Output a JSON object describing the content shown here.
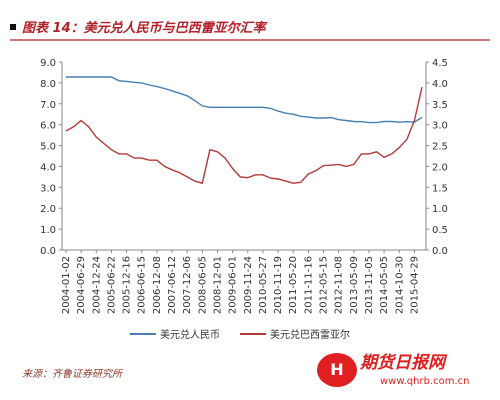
{
  "chart_data": {
    "type": "line",
    "title": "图表 14：美元兑人民币与巴西雷亚尔汇率",
    "source": "来源：齐鲁证券研究所",
    "watermark": {
      "name": "期货日报网",
      "url": "www.qhrb.com.cn"
    },
    "categories": [
      "2004-01-02",
      null,
      "2004-06-29",
      null,
      "2004-12-24",
      null,
      "2005-06-22",
      null,
      "2005-12-16",
      null,
      "2006-06-15",
      null,
      "2006-12-08",
      null,
      "2007-06-12",
      null,
      "2007-12-06",
      null,
      "2008-06-05",
      null,
      "2008-12-01",
      null,
      "2009-06-01",
      null,
      "2009-11-24",
      null,
      "2010-05-27",
      null,
      "2010-11-19",
      null,
      "2011-05-20",
      null,
      "2011-11-16",
      null,
      "2012-05-15",
      null,
      "2012-11-08",
      null,
      "2013-05-09",
      null,
      "2013-11-05",
      null,
      "2014-05-05",
      null,
      "2014-10-30",
      null,
      "2015-04-29",
      null
    ],
    "series": [
      {
        "name": "美元兑人民币",
        "color": "#4a7eb0",
        "axis": "y",
        "values": [
          8.28,
          8.28,
          8.28,
          8.28,
          8.28,
          8.28,
          8.28,
          8.1,
          8.07,
          8.03,
          8.0,
          7.9,
          7.82,
          7.73,
          7.62,
          7.5,
          7.38,
          7.15,
          6.9,
          6.83,
          6.83,
          6.83,
          6.83,
          6.83,
          6.83,
          6.83,
          6.83,
          6.78,
          6.65,
          6.55,
          6.5,
          6.4,
          6.36,
          6.32,
          6.32,
          6.34,
          6.24,
          6.2,
          6.15,
          6.14,
          6.1,
          6.1,
          6.15,
          6.15,
          6.12,
          6.14,
          6.12,
          6.35
        ]
      },
      {
        "name": "美元兑巴西雷亚尔",
        "color": "#b23a3a",
        "axis": "y2",
        "values": [
          2.85,
          2.95,
          3.1,
          2.95,
          2.7,
          2.55,
          2.4,
          2.3,
          2.3,
          2.2,
          2.2,
          2.15,
          2.15,
          2.0,
          1.92,
          1.85,
          1.75,
          1.65,
          1.6,
          2.4,
          2.35,
          2.2,
          1.95,
          1.75,
          1.73,
          1.8,
          1.8,
          1.72,
          1.7,
          1.65,
          1.6,
          1.62,
          1.82,
          1.9,
          2.02,
          2.03,
          2.05,
          2.0,
          2.05,
          2.3,
          2.3,
          2.35,
          2.22,
          2.3,
          2.45,
          2.65,
          3.1,
          3.9
        ]
      }
    ],
    "ylim": [
      0,
      9
    ],
    "yticks": [
      {
        "value": 0,
        "label": "0.0"
      },
      {
        "value": 1,
        "label": "1.0"
      },
      {
        "value": 2,
        "label": "2.0"
      },
      {
        "value": 3,
        "label": "3.0"
      },
      {
        "value": 4,
        "label": "4.0"
      },
      {
        "value": 5,
        "label": "5.0"
      },
      {
        "value": 6,
        "label": "6.0"
      },
      {
        "value": 7,
        "label": "7.0"
      },
      {
        "value": 8,
        "label": "8.0"
      },
      {
        "value": 9,
        "label": "9.0"
      }
    ],
    "y2lim": [
      0,
      4.5
    ],
    "y2ticks": [
      {
        "value": 0,
        "label": "0.0"
      },
      0.5,
      {
        "value": 1,
        "label": "1.0"
      },
      1.5,
      {
        "value": 2,
        "label": "2.0"
      },
      2.5,
      {
        "value": 3,
        "label": "3.0"
      },
      3.5,
      {
        "value": 4,
        "label": "4.0"
      },
      4.5
    ],
    "legend": "bottom"
  }
}
